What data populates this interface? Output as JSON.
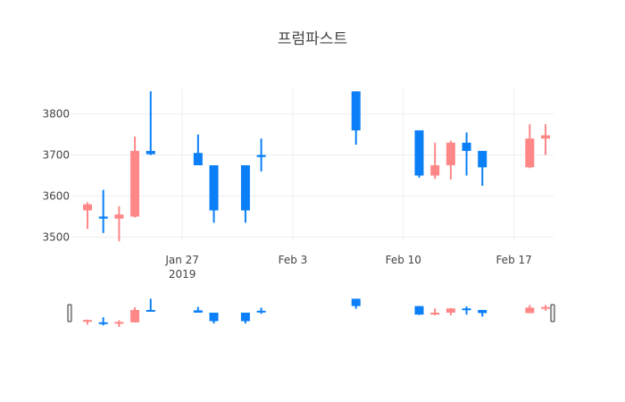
{
  "chart_data": {
    "type": "candlestick",
    "title": "프럼파스트",
    "xlabel": "",
    "ylabel": "",
    "x_range": [
      "2019-01-21",
      "2019-02-19"
    ],
    "ylim": [
      3490,
      3860
    ],
    "y_ticks": [
      3500,
      3600,
      3700,
      3800
    ],
    "x_ticks": [
      {
        "date": "2019-01-27",
        "label": "Jan 27",
        "sub": "2019"
      },
      {
        "date": "2019-02-03",
        "label": "Feb 3",
        "sub": ""
      },
      {
        "date": "2019-02-10",
        "label": "Feb 10",
        "sub": ""
      },
      {
        "date": "2019-02-17",
        "label": "Feb 17",
        "sub": ""
      }
    ],
    "grid": true,
    "rangeslider": true,
    "colors": {
      "increasing": "#ff8787",
      "decreasing": "#0a7ff7"
    },
    "candles": [
      {
        "date": "2019-01-21",
        "open": 3565,
        "high": 3585,
        "low": 3520,
        "close": 3580
      },
      {
        "date": "2019-01-22",
        "open": 3550,
        "high": 3615,
        "low": 3510,
        "close": 3545
      },
      {
        "date": "2019-01-23",
        "open": 3545,
        "high": 3575,
        "low": 3490,
        "close": 3555
      },
      {
        "date": "2019-01-24",
        "open": 3550,
        "high": 3745,
        "low": 3548,
        "close": 3710
      },
      {
        "date": "2019-01-25",
        "open": 3710,
        "high": 3855,
        "low": 3700,
        "close": 3702
      },
      {
        "date": "2019-01-28",
        "open": 3705,
        "high": 3750,
        "low": 3675,
        "close": 3675
      },
      {
        "date": "2019-01-29",
        "open": 3675,
        "high": 3675,
        "low": 3535,
        "close": 3565
      },
      {
        "date": "2019-01-31",
        "open": 3675,
        "high": 3675,
        "low": 3535,
        "close": 3565
      },
      {
        "date": "2019-02-01",
        "open": 3700,
        "high": 3740,
        "low": 3660,
        "close": 3695
      },
      {
        "date": "2019-02-07",
        "open": 3855,
        "high": 3855,
        "low": 3725,
        "close": 3760
      },
      {
        "date": "2019-02-11",
        "open": 3760,
        "high": 3760,
        "low": 3645,
        "close": 3650
      },
      {
        "date": "2019-02-12",
        "open": 3650,
        "high": 3730,
        "low": 3642,
        "close": 3675
      },
      {
        "date": "2019-02-13",
        "open": 3675,
        "high": 3735,
        "low": 3640,
        "close": 3730
      },
      {
        "date": "2019-02-14",
        "open": 3730,
        "high": 3755,
        "low": 3650,
        "close": 3710
      },
      {
        "date": "2019-02-15",
        "open": 3710,
        "high": 3710,
        "low": 3625,
        "close": 3670
      },
      {
        "date": "2019-02-18",
        "open": 3670,
        "high": 3775,
        "low": 3668,
        "close": 3740
      },
      {
        "date": "2019-02-19",
        "open": 3740,
        "high": 3775,
        "low": 3700,
        "close": 3748
      }
    ]
  }
}
